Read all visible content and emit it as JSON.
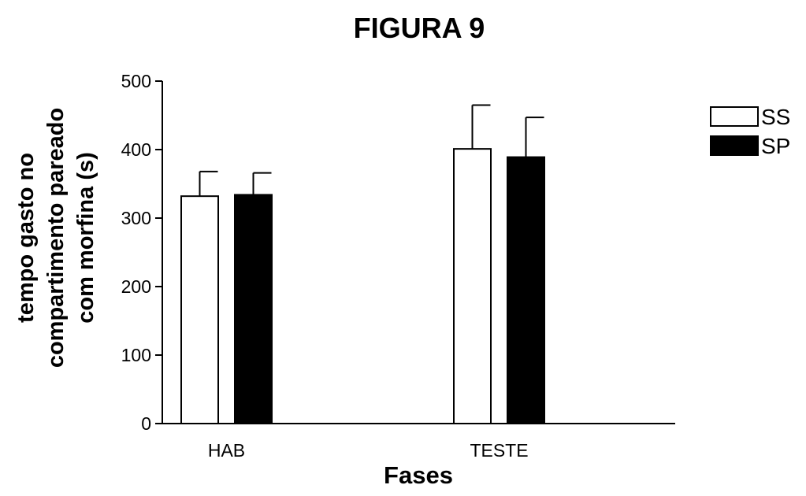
{
  "chart_data": {
    "type": "bar",
    "title": "FIGURA 9",
    "xlabel": "Fases",
    "ylabel_lines": [
      "tempo gasto no",
      "compartimento pareado",
      "com morfina (s)"
    ],
    "categories": [
      "HAB",
      "TESTE"
    ],
    "ylim": [
      0,
      500
    ],
    "yticks": [
      0,
      100,
      200,
      300,
      400,
      500
    ],
    "series": [
      {
        "name": "SS",
        "values": [
          332,
          401
        ],
        "errors": [
          36,
          64
        ],
        "fill": "#ffffff",
        "stroke": "#000000"
      },
      {
        "name": "SP",
        "values": [
          334,
          389
        ],
        "errors": [
          32,
          58
        ],
        "fill": "#000000",
        "stroke": "#000000"
      }
    ],
    "error_bars": "upper",
    "grid": false,
    "legend_position": "top-right"
  }
}
